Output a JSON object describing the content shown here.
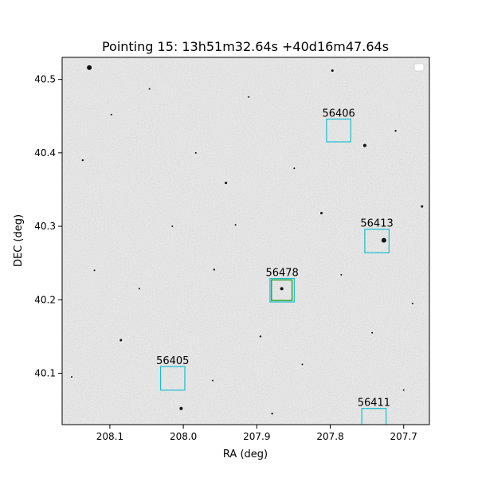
{
  "chart_data": {
    "type": "scatter",
    "title": "Pointing 15: 13h51m32.64s +40d16m47.64s",
    "xlabel": "RA (deg)",
    "ylabel": "DEC (deg)",
    "xlim": [
      208.165,
      207.665
    ],
    "ylim": [
      40.03,
      40.53
    ],
    "x_inverted": true,
    "x_ticks": [
      {
        "value": 208.1,
        "label": "208.1"
      },
      {
        "value": 208.0,
        "label": "208.0"
      },
      {
        "value": 207.9,
        "label": "207.9"
      },
      {
        "value": 207.8,
        "label": "207.8"
      },
      {
        "value": 207.7,
        "label": "207.7"
      }
    ],
    "y_ticks": [
      {
        "value": 40.1,
        "label": "40.1"
      },
      {
        "value": 40.2,
        "label": "40.2"
      },
      {
        "value": 40.3,
        "label": "40.3"
      },
      {
        "value": 40.4,
        "label": "40.4"
      },
      {
        "value": 40.5,
        "label": "40.5"
      }
    ],
    "grid": false,
    "legend": "top-right",
    "background": "grayscale sky image",
    "box_color": "#17becf",
    "highlight_color": "#2ca02c",
    "regions": [
      {
        "label": "56406",
        "ra": [
          207.805,
          207.772
        ],
        "dec": [
          40.415,
          40.446
        ]
      },
      {
        "label": "56413",
        "ra": [
          207.753,
          207.72
        ],
        "dec": [
          40.264,
          40.296
        ]
      },
      {
        "label": "56478",
        "ra": [
          207.882,
          207.849
        ],
        "dec": [
          40.197,
          40.229
        ]
      },
      {
        "label": "56405",
        "ra": [
          208.031,
          207.998
        ],
        "dec": [
          40.077,
          40.109
        ]
      },
      {
        "label": "56411",
        "ra": [
          207.757,
          207.724
        ],
        "dec": [
          40.02,
          40.052
        ]
      }
    ],
    "highlight": {
      "ra": [
        207.88,
        207.852
      ],
      "dec": [
        40.199,
        40.227
      ]
    },
    "stars": [
      {
        "ra": 208.128,
        "dec": 40.516,
        "s": 3
      },
      {
        "ra": 208.174,
        "dec": 40.3,
        "s": 3
      },
      {
        "ra": 207.727,
        "dec": 40.281,
        "s": 3
      },
      {
        "ra": 207.866,
        "dec": 40.215,
        "s": 2
      },
      {
        "ra": 208.003,
        "dec": 40.052,
        "s": 2
      },
      {
        "ra": 207.753,
        "dec": 40.41,
        "s": 2
      },
      {
        "ra": 207.797,
        "dec": 40.512,
        "s": 1.5
      },
      {
        "ra": 207.942,
        "dec": 40.359,
        "s": 1.5
      },
      {
        "ra": 207.812,
        "dec": 40.318,
        "s": 1.5
      },
      {
        "ra": 207.675,
        "dec": 40.327,
        "s": 1.5
      },
      {
        "ra": 208.137,
        "dec": 40.39,
        "s": 1.2
      },
      {
        "ra": 207.958,
        "dec": 40.241,
        "s": 1.2
      },
      {
        "ra": 207.895,
        "dec": 40.15,
        "s": 1.2
      },
      {
        "ra": 208.085,
        "dec": 40.145,
        "s": 1.5
      },
      {
        "ra": 207.711,
        "dec": 40.43,
        "s": 1.2
      },
      {
        "ra": 207.879,
        "dec": 40.045,
        "s": 1.2
      },
      {
        "ra": 208.046,
        "dec": 40.487,
        "s": 1
      },
      {
        "ra": 207.911,
        "dec": 40.476,
        "s": 1
      },
      {
        "ra": 207.983,
        "dec": 40.4,
        "s": 1
      },
      {
        "ra": 207.849,
        "dec": 40.379,
        "s": 1
      },
      {
        "ra": 208.121,
        "dec": 40.24,
        "s": 1
      },
      {
        "ra": 207.785,
        "dec": 40.234,
        "s": 1
      },
      {
        "ra": 207.688,
        "dec": 40.195,
        "s": 1
      },
      {
        "ra": 208.015,
        "dec": 40.3,
        "s": 1
      },
      {
        "ra": 207.838,
        "dec": 40.112,
        "s": 1
      },
      {
        "ra": 207.96,
        "dec": 40.09,
        "s": 1
      },
      {
        "ra": 208.152,
        "dec": 40.095,
        "s": 1
      },
      {
        "ra": 207.7,
        "dec": 40.077,
        "s": 1
      },
      {
        "ra": 207.743,
        "dec": 40.155,
        "s": 1
      },
      {
        "ra": 208.06,
        "dec": 40.215,
        "s": 1
      },
      {
        "ra": 208.098,
        "dec": 40.452,
        "s": 1
      },
      {
        "ra": 207.929,
        "dec": 40.302,
        "s": 1
      }
    ]
  }
}
